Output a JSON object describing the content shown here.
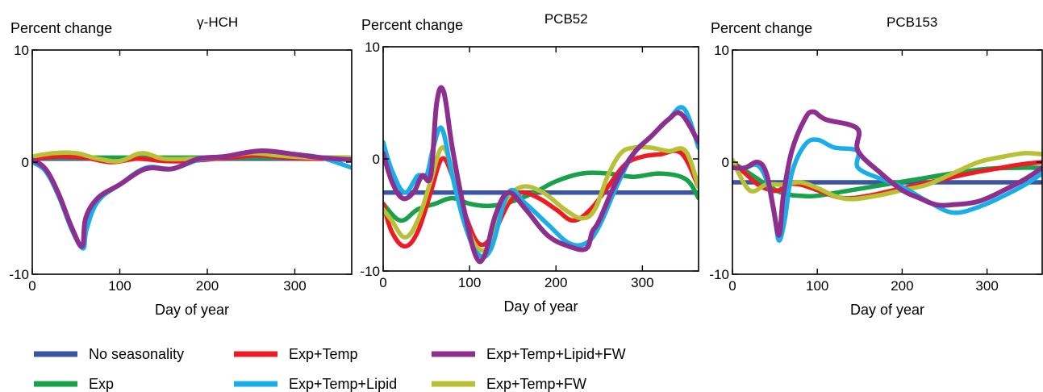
{
  "chart_data": [
    {
      "type": "line",
      "title": "γ-HCH",
      "ylabel": "Percent change",
      "xlabel": "Day of year",
      "xlim": [
        0,
        365
      ],
      "ylim": [
        -10,
        10
      ],
      "x_ticks": [
        0,
        100,
        200,
        300
      ],
      "y_ticks": [
        -10,
        0,
        10
      ],
      "x_tick_labels": [
        "0",
        "100",
        "200",
        "300"
      ],
      "y_tick_labels": [
        "-10",
        "0",
        "10"
      ],
      "series": [
        {
          "name": "No seasonality",
          "x": [
            0,
            365
          ],
          "y": [
            0.3,
            0.3
          ]
        },
        {
          "name": "Exp",
          "x": [
            0,
            100,
            200,
            300,
            365
          ],
          "y": [
            0.4,
            0.4,
            0.4,
            0.4,
            0.4
          ]
        },
        {
          "name": "Exp+Temp",
          "x": [
            0,
            30,
            60,
            90,
            120,
            150,
            180,
            210,
            240,
            260,
            290,
            320,
            365
          ],
          "y": [
            0.3,
            0.5,
            0.4,
            0.0,
            0.3,
            0.1,
            0.1,
            0.3,
            0.5,
            0.6,
            0.4,
            0.3,
            0.3
          ]
        },
        {
          "name": "Exp+Temp+Lipid",
          "x": [
            0,
            15,
            30,
            45,
            58,
            62,
            75,
            100,
            130,
            160,
            190,
            220,
            260,
            300,
            330,
            365
          ],
          "y": [
            0.0,
            -0.8,
            -3.0,
            -6.0,
            -7.7,
            -6.0,
            -3.5,
            -2.0,
            -0.5,
            -0.6,
            0.2,
            0.5,
            1.0,
            0.7,
            0.4,
            -0.5
          ]
        },
        {
          "name": "Exp+Temp+Lipid+FW",
          "x": [
            0,
            15,
            30,
            45,
            57,
            61,
            75,
            100,
            130,
            160,
            190,
            220,
            260,
            300,
            330,
            365
          ],
          "y": [
            0.2,
            -0.6,
            -2.8,
            -5.8,
            -7.5,
            -5.0,
            -3.2,
            -2.0,
            -0.6,
            -0.6,
            0.3,
            0.5,
            1.0,
            0.7,
            0.4,
            0.2
          ]
        },
        {
          "name": "Exp+Temp+FW",
          "x": [
            0,
            25,
            50,
            75,
            100,
            125,
            150,
            180,
            210,
            250,
            280,
            320,
            365
          ],
          "y": [
            0.5,
            0.8,
            0.8,
            0.3,
            0.1,
            0.8,
            0.3,
            0.3,
            0.4,
            0.8,
            0.6,
            0.4,
            0.4
          ]
        }
      ]
    },
    {
      "type": "line",
      "title": "PCB52",
      "ylabel": "Percent change",
      "xlabel": "Day of year",
      "xlim": [
        0,
        365
      ],
      "ylim": [
        -10,
        10
      ],
      "x_ticks": [
        0,
        100,
        200,
        300
      ],
      "y_ticks": [
        -10,
        0,
        10
      ],
      "x_tick_labels": [
        "0",
        "100",
        "200",
        "300"
      ],
      "y_tick_labels": [
        "-10",
        "0",
        "10"
      ],
      "series": [
        {
          "name": "No seasonality",
          "x": [
            0,
            365
          ],
          "y": [
            -3.0,
            -3.0
          ]
        },
        {
          "name": "Exp",
          "x": [
            0,
            20,
            40,
            60,
            80,
            100,
            120,
            140,
            160,
            180,
            200,
            230,
            260,
            290,
            320,
            350,
            365
          ],
          "y": [
            -4.0,
            -5.5,
            -4.5,
            -4.0,
            -3.5,
            -4.0,
            -4.2,
            -4.0,
            -3.5,
            -2.8,
            -2.0,
            -1.3,
            -1.3,
            -1.6,
            -1.3,
            -1.8,
            -3.5
          ]
        },
        {
          "name": "Exp+Temp",
          "x": [
            0,
            10,
            25,
            40,
            55,
            68,
            80,
            95,
            110,
            125,
            145,
            160,
            180,
            200,
            220,
            240,
            260,
            280,
            300,
            320,
            345,
            365
          ],
          "y": [
            -4.0,
            -6.5,
            -7.8,
            -6.5,
            -3.0,
            0.0,
            -1.5,
            -5.0,
            -7.5,
            -7.0,
            -4.0,
            -3.0,
            -3.5,
            -4.5,
            -5.5,
            -4.5,
            -2.5,
            -0.5,
            0.2,
            0.4,
            0.5,
            -2.5
          ]
        },
        {
          "name": "Exp+Temp+Lipid",
          "x": [
            0,
            10,
            25,
            40,
            50,
            58,
            68,
            80,
            95,
            110,
            125,
            145,
            165,
            190,
            215,
            235,
            250,
            270,
            290,
            310,
            330,
            348,
            365
          ],
          "y": [
            1.5,
            -1.0,
            -3.0,
            -1.5,
            -1.5,
            1.0,
            2.7,
            -1.5,
            -6.0,
            -8.5,
            -8.0,
            -3.0,
            -4.0,
            -5.8,
            -7.5,
            -7.5,
            -6.0,
            -2.5,
            0.5,
            2.0,
            3.5,
            4.5,
            1.0
          ]
        },
        {
          "name": "Exp+Temp+Lipid+FW",
          "x": [
            0,
            10,
            22,
            35,
            45,
            55,
            62,
            70,
            80,
            95,
            108,
            118,
            130,
            145,
            165,
            190,
            215,
            235,
            242,
            250,
            270,
            290,
            310,
            330,
            345,
            365
          ],
          "y": [
            0.5,
            -2.0,
            -3.5,
            -3.0,
            -1.5,
            -1.5,
            5.0,
            6.0,
            1.0,
            -5.0,
            -8.8,
            -8.5,
            -5.0,
            -3.0,
            -4.5,
            -6.8,
            -7.8,
            -8.0,
            -6.5,
            -5.5,
            -2.0,
            0.5,
            2.0,
            3.5,
            4.0,
            1.5
          ]
        },
        {
          "name": "Exp+Temp+FW",
          "x": [
            0,
            10,
            25,
            40,
            55,
            68,
            80,
            95,
            110,
            125,
            140,
            160,
            185,
            210,
            230,
            245,
            260,
            275,
            290,
            310,
            330,
            350,
            365
          ],
          "y": [
            -4.5,
            -5.5,
            -7.0,
            -5.5,
            -2.0,
            1.0,
            -1.0,
            -5.5,
            -8.0,
            -7.5,
            -4.0,
            -2.5,
            -3.0,
            -4.5,
            -5.3,
            -4.5,
            -1.5,
            0.5,
            1.0,
            1.0,
            0.7,
            0.7,
            -2.5
          ]
        }
      ]
    },
    {
      "type": "line",
      "title": "PCB153",
      "ylabel": "Percent change",
      "xlabel": "Day of year",
      "xlim": [
        0,
        365
      ],
      "ylim": [
        -10,
        10
      ],
      "x_ticks": [
        0,
        100,
        200,
        300
      ],
      "y_ticks": [
        -10,
        0,
        10
      ],
      "x_tick_labels": [
        "0",
        "100",
        "200",
        "300"
      ],
      "y_tick_labels": [
        "-10",
        "0",
        "10"
      ],
      "series": [
        {
          "name": "No seasonality",
          "x": [
            0,
            365
          ],
          "y": [
            -1.8,
            -1.8
          ]
        },
        {
          "name": "Exp",
          "x": [
            0,
            20,
            40,
            60,
            80,
            100,
            140,
            180,
            220,
            260,
            300,
            340,
            365
          ],
          "y": [
            0.0,
            -1.0,
            -2.0,
            -2.8,
            -3.0,
            -3.0,
            -2.5,
            -2.0,
            -1.5,
            -1.0,
            -0.6,
            -0.5,
            -0.5
          ]
        },
        {
          "name": "Exp+Temp",
          "x": [
            0,
            15,
            30,
            45,
            55,
            65,
            80,
            100,
            130,
            160,
            190,
            220,
            250,
            280,
            310,
            340,
            365
          ],
          "y": [
            0.0,
            -1.0,
            -2.0,
            -2.5,
            -2.5,
            -2.0,
            -2.0,
            -2.5,
            -3.2,
            -3.0,
            -2.5,
            -2.0,
            -1.5,
            -1.0,
            -0.6,
            -0.2,
            0.0
          ]
        },
        {
          "name": "Exp+Temp+Lipid",
          "x": [
            0,
            15,
            30,
            42,
            50,
            55,
            62,
            70,
            85,
            100,
            120,
            147,
            148,
            175,
            200,
            230,
            260,
            290,
            320,
            345,
            365
          ],
          "y": [
            -0.5,
            -0.5,
            -0.3,
            -2.0,
            -5.0,
            -7.0,
            -5.0,
            -1.0,
            1.5,
            2.0,
            1.3,
            1.0,
            -0.5,
            -1.5,
            -2.2,
            -3.5,
            -4.5,
            -4.0,
            -3.0,
            -2.0,
            -1.0
          ]
        },
        {
          "name": "Exp+Temp+Lipid+FW",
          "x": [
            0,
            15,
            30,
            40,
            48,
            55,
            60,
            70,
            85,
            95,
            110,
            147,
            148,
            175,
            200,
            220,
            240,
            260,
            290,
            320,
            345,
            365
          ],
          "y": [
            -0.5,
            -0.5,
            0.0,
            -1.0,
            -4.0,
            -6.5,
            -3.0,
            1.0,
            3.8,
            4.5,
            3.8,
            3.0,
            1.0,
            -1.0,
            -2.5,
            -3.2,
            -3.8,
            -3.8,
            -3.5,
            -2.5,
            -1.5,
            -0.5
          ]
        },
        {
          "name": "Exp+Temp+FW",
          "x": [
            0,
            20,
            40,
            60,
            80,
            100,
            120,
            140,
            170,
            200,
            230,
            260,
            290,
            320,
            345,
            365
          ],
          "y": [
            0.2,
            -2.5,
            -2.0,
            -2.0,
            -1.8,
            -2.3,
            -3.0,
            -3.3,
            -3.0,
            -2.5,
            -2.0,
            -1.0,
            0.0,
            0.5,
            0.8,
            0.7
          ]
        }
      ]
    }
  ],
  "series_colors": {
    "No seasonality": "#3b55a3",
    "Exp": "#18a14a",
    "Exp+Temp": "#ed1c24",
    "Exp+Temp+Lipid": "#1aaee8",
    "Exp+Temp+Lipid+FW": "#8c2f8f",
    "Exp+Temp+FW": "#b8c035"
  },
  "legend": {
    "placement": "bottom",
    "entries": [
      "No seasonality",
      "Exp+Temp",
      "Exp+Temp+Lipid+FW",
      "Exp",
      "Exp+Temp+Lipid",
      "Exp+Temp+FW"
    ]
  }
}
